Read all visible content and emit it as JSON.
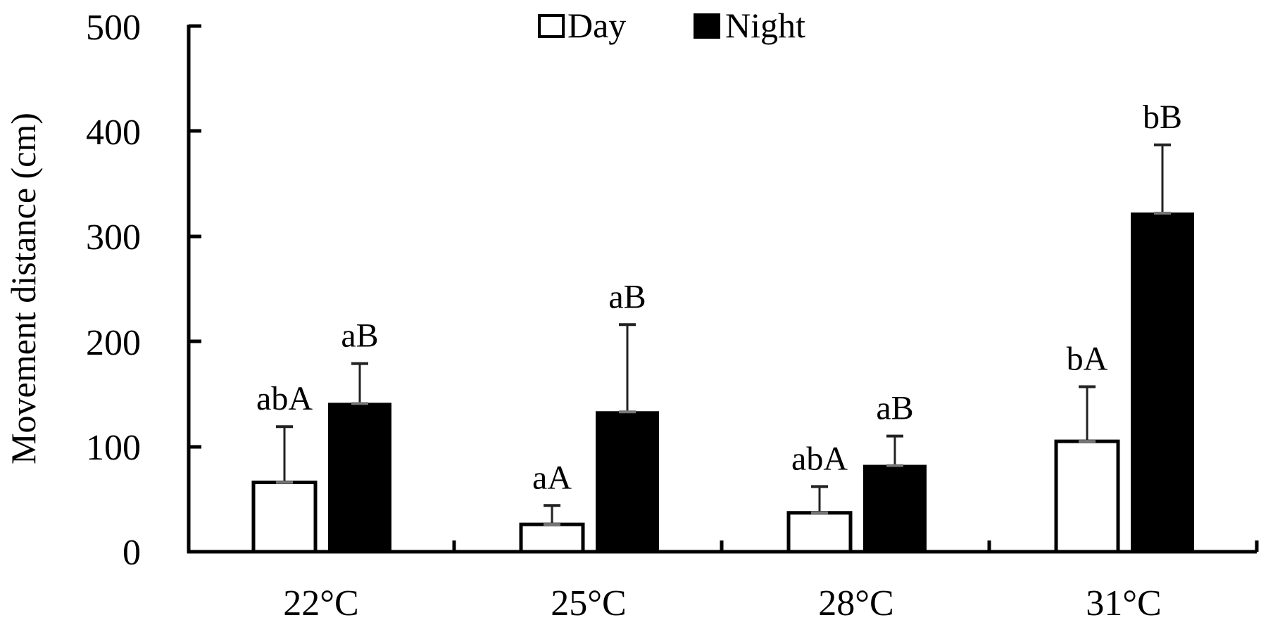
{
  "chart_data": {
    "type": "bar",
    "title": "",
    "xlabel": "",
    "ylabel": "Movement distance (cm)",
    "ylim": [
      0,
      500
    ],
    "yticks": [
      0,
      100,
      200,
      300,
      400,
      500
    ],
    "grid": false,
    "legend_position": "top-center",
    "categories": [
      "22°C",
      "25°C",
      "28°C",
      "31°C"
    ],
    "series": [
      {
        "name": "Day",
        "fill": "#ffffff",
        "stroke": "#000000",
        "values": [
          66,
          26,
          37,
          105
        ],
        "error_upper": [
          119,
          44,
          62,
          157
        ],
        "labels": [
          "abA",
          "aA",
          "abA",
          "bA"
        ]
      },
      {
        "name": "Night",
        "fill": "#000000",
        "stroke": "#000000",
        "values": [
          141,
          133,
          82,
          322
        ],
        "error_upper": [
          179,
          216,
          110,
          387
        ],
        "labels": [
          "aB",
          "aB",
          "aB",
          "bB"
        ]
      }
    ]
  },
  "legend": {
    "day_label": "Day",
    "night_label": "Night"
  },
  "axis": {
    "y_title": "Movement distance (cm)",
    "y_ticks": [
      "0",
      "100",
      "200",
      "300",
      "400",
      "500"
    ],
    "x_labels": [
      "22°C",
      "25°C",
      "28°C",
      "31°C"
    ]
  }
}
